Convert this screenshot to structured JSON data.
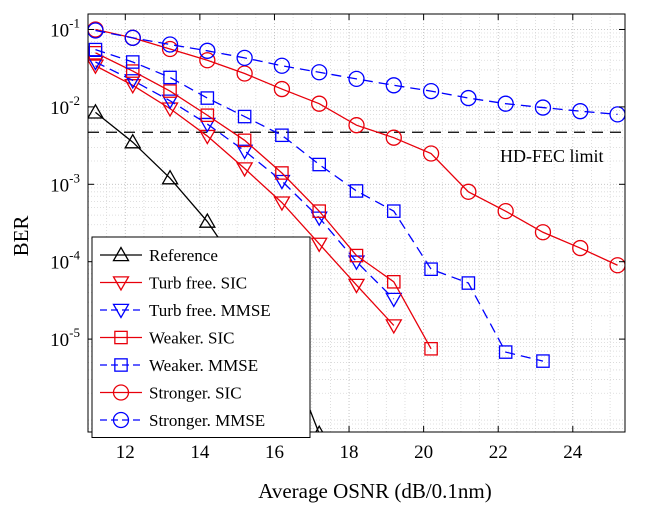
{
  "chart_data": {
    "type": "line",
    "xlabel": "Average OSNR (dB/0.1nm)",
    "ylabel": "BER",
    "xlim": [
      11.0,
      25.4
    ],
    "ylim_log10": [
      -6.2,
      -0.8
    ],
    "y_scale": "log",
    "grid": true,
    "minor_grid": true,
    "legend_position": "bottom-left",
    "x_ticks": [
      12,
      14,
      16,
      18,
      20,
      22,
      24
    ],
    "x_tick_labels": [
      "12",
      "14",
      "16",
      "18",
      "20",
      "22",
      "24"
    ],
    "y_ticks_log10": [
      -1,
      -2,
      -3,
      -4,
      -5
    ],
    "y_tick_labels": [
      {
        "base": "10",
        "exp": "-1"
      },
      {
        "base": "10",
        "exp": "-2"
      },
      {
        "base": "10",
        "exp": "-3"
      },
      {
        "base": "10",
        "exp": "-4"
      },
      {
        "base": "10",
        "exp": "-5"
      }
    ],
    "reference_line": {
      "label": "HD-FEC limit",
      "y": 0.0047,
      "style": "dashed",
      "color": "#000000"
    },
    "series": [
      {
        "name": "Reference",
        "color": "#000000",
        "marker": "triangle-up",
        "dash": "solid",
        "x": [
          11.2,
          12.2,
          13.2,
          14.2,
          15.2,
          16.2,
          17.2
        ],
        "y": [
          0.0085,
          0.0035,
          0.0012,
          0.00033,
          6.5e-05,
          1.05e-05,
          6e-07
        ]
      },
      {
        "name": "Turb free. SIC",
        "color": "#e8000b",
        "marker": "triangle-down",
        "dash": "solid",
        "x": [
          11.2,
          12.2,
          13.2,
          14.2,
          15.2,
          16.2,
          17.2,
          18.2,
          19.2
        ],
        "y": [
          0.034,
          0.019,
          0.0095,
          0.0042,
          0.0016,
          0.00058,
          0.00017,
          5e-05,
          1.5e-05
        ]
      },
      {
        "name": "Turb free. MMSE",
        "color": "#0000ff",
        "marker": "triangle-down",
        "dash": "dashed",
        "x": [
          11.2,
          12.2,
          13.2,
          14.2,
          15.2,
          16.2,
          17.2,
          18.2,
          19.2
        ],
        "y": [
          0.038,
          0.022,
          0.012,
          0.006,
          0.0027,
          0.0011,
          0.00037,
          0.0001,
          3.3e-05
        ]
      },
      {
        "name": "Weaker. SIC",
        "color": "#e8000b",
        "marker": "square",
        "dash": "solid",
        "x": [
          11.2,
          12.2,
          13.2,
          14.2,
          15.2,
          16.2,
          17.2,
          18.2,
          19.2,
          20.2
        ],
        "y": [
          0.05,
          0.029,
          0.016,
          0.0078,
          0.0037,
          0.0014,
          0.00045,
          0.00012,
          5.5e-05,
          7.5e-06
        ]
      },
      {
        "name": "Weaker. MMSE",
        "color": "#0000ff",
        "marker": "square",
        "dash": "dashed",
        "x": [
          11.2,
          12.2,
          13.2,
          14.2,
          15.2,
          16.2,
          17.2,
          18.2,
          19.2,
          20.2,
          21.2,
          22.2,
          23.2
        ],
        "y": [
          0.055,
          0.038,
          0.024,
          0.013,
          0.0075,
          0.0043,
          0.0018,
          0.00082,
          0.00045,
          8e-05,
          5.3e-05,
          6.8e-06,
          5.2e-06
        ]
      },
      {
        "name": "Stronger. SIC",
        "color": "#e8000b",
        "marker": "circle",
        "dash": "solid",
        "x": [
          11.2,
          12.2,
          13.2,
          14.2,
          15.2,
          16.2,
          17.2,
          18.2,
          19.2,
          20.2,
          21.2,
          22.2,
          23.2,
          24.2,
          25.2
        ],
        "y": [
          0.1,
          0.078,
          0.056,
          0.04,
          0.027,
          0.017,
          0.011,
          0.0058,
          0.004,
          0.0025,
          0.0008,
          0.00045,
          0.00024,
          0.00015,
          9e-05
        ]
      },
      {
        "name": "Stronger. MMSE",
        "color": "#0000ff",
        "marker": "circle",
        "dash": "dashed",
        "x": [
          11.2,
          12.2,
          13.2,
          14.2,
          15.2,
          16.2,
          17.2,
          18.2,
          19.2,
          20.2,
          21.2,
          22.2,
          23.2,
          24.2,
          25.2
        ],
        "y": [
          0.097,
          0.078,
          0.064,
          0.053,
          0.043,
          0.034,
          0.028,
          0.023,
          0.019,
          0.016,
          0.013,
          0.011,
          0.0098,
          0.0088,
          0.008
        ]
      }
    ]
  }
}
